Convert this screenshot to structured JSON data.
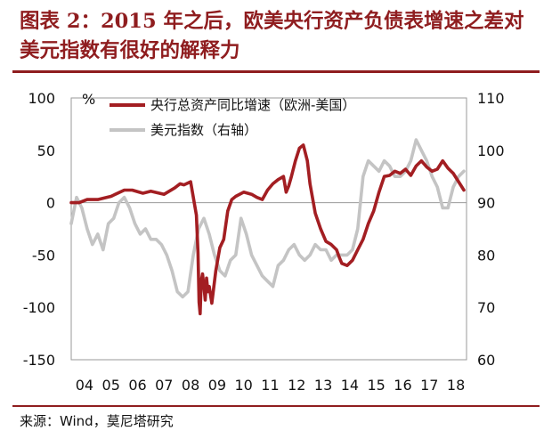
{
  "figure": {
    "title": "图表 2：2015 年之后，欧美央行资产负债表增速之差对美元指数有很好的解释力",
    "source": "来源：Wind，莫尼塔研究"
  },
  "colors": {
    "title": "#8f1d1f",
    "series_balance_sheet": "#a31e22",
    "series_dollar_index": "#c4c4c4"
  },
  "chart_data": {
    "type": "line",
    "left_axis": {
      "unit": "%",
      "range": [
        -150,
        100
      ],
      "ticks": [
        "100",
        "50",
        "0",
        "-50",
        "-100",
        "-150"
      ]
    },
    "right_axis": {
      "range": [
        60,
        110
      ],
      "ticks": [
        "110",
        "100",
        "90",
        "80",
        "70",
        "60"
      ]
    },
    "x_axis": {
      "range": [
        2004.0,
        2018.9
      ],
      "ticks": [
        "04",
        "05",
        "06",
        "07",
        "08",
        "09",
        "10",
        "11",
        "12",
        "13",
        "14",
        "15",
        "16",
        "17",
        "18"
      ]
    },
    "grid": false,
    "legend_position": "top",
    "series": [
      {
        "name": "央行总资产同比增速（欧洲-美国）",
        "axis": "left",
        "x": [
          2004.0,
          2004.3,
          2004.6,
          2005.0,
          2005.5,
          2006.0,
          2006.3,
          2006.7,
          2007.0,
          2007.5,
          2007.9,
          2008.1,
          2008.25,
          2008.5,
          2008.72,
          2008.78,
          2008.82,
          2008.86,
          2008.9,
          2008.95,
          2009.0,
          2009.05,
          2009.1,
          2009.15,
          2009.2,
          2009.3,
          2009.45,
          2009.6,
          2009.75,
          2009.9,
          2010.05,
          2010.2,
          2010.5,
          2010.8,
          2011.0,
          2011.2,
          2011.4,
          2011.6,
          2011.8,
          2012.0,
          2012.1,
          2012.2,
          2012.3,
          2012.45,
          2012.6,
          2012.75,
          2012.9,
          2013.0,
          2013.2,
          2013.4,
          2013.6,
          2013.8,
          2014.0,
          2014.1,
          2014.2,
          2014.4,
          2014.6,
          2014.8,
          2015.0,
          2015.2,
          2015.4,
          2015.6,
          2015.8,
          2016.0,
          2016.2,
          2016.4,
          2016.6,
          2016.8,
          2017.0,
          2017.2,
          2017.4,
          2017.6,
          2017.8,
          2018.0,
          2018.2,
          2018.4,
          2018.6,
          2018.8
        ],
        "y": [
          0,
          0,
          3,
          3,
          6,
          12,
          12,
          9,
          11,
          8,
          14,
          18,
          17,
          20,
          -12,
          -48,
          -95,
          -106,
          -75,
          -68,
          -80,
          -93,
          -72,
          -85,
          -80,
          -96,
          -65,
          -43,
          -35,
          -8,
          3,
          6,
          10,
          8,
          5,
          3,
          12,
          18,
          22,
          25,
          10,
          16,
          25,
          40,
          52,
          55,
          40,
          18,
          -10,
          -25,
          -37,
          -40,
          -45,
          -52,
          -58,
          -60,
          -55,
          -45,
          -35,
          -20,
          -8,
          10,
          25,
          26,
          30,
          28,
          32,
          26,
          35,
          40,
          34,
          30,
          32,
          40,
          33,
          28,
          20,
          12
        ]
      },
      {
        "name": "美元指数（右轴）",
        "axis": "right",
        "x": [
          2004.0,
          2004.2,
          2004.4,
          2004.6,
          2004.8,
          2005.0,
          2005.2,
          2005.4,
          2005.6,
          2005.8,
          2006.0,
          2006.2,
          2006.4,
          2006.6,
          2006.8,
          2007.0,
          2007.2,
          2007.4,
          2007.6,
          2007.8,
          2008.0,
          2008.2,
          2008.4,
          2008.6,
          2008.8,
          2009.0,
          2009.2,
          2009.4,
          2009.6,
          2009.8,
          2010.0,
          2010.2,
          2010.4,
          2010.6,
          2010.8,
          2011.0,
          2011.2,
          2011.4,
          2011.6,
          2011.8,
          2012.0,
          2012.2,
          2012.4,
          2012.6,
          2012.8,
          2013.0,
          2013.2,
          2013.4,
          2013.6,
          2013.8,
          2014.0,
          2014.2,
          2014.4,
          2014.6,
          2014.8,
          2015.0,
          2015.2,
          2015.4,
          2015.6,
          2015.8,
          2016.0,
          2016.2,
          2016.4,
          2016.6,
          2016.8,
          2017.0,
          2017.2,
          2017.4,
          2017.6,
          2017.8,
          2018.0,
          2018.2,
          2018.4,
          2018.6,
          2018.8
        ],
        "y": [
          86,
          91,
          89,
          85,
          82,
          84,
          81,
          86,
          87,
          90,
          91,
          89,
          86,
          84,
          85,
          83,
          83,
          82,
          80,
          77,
          73,
          72,
          73,
          80,
          85,
          87,
          84,
          80,
          77,
          76,
          79,
          80,
          87,
          84,
          80,
          78,
          76,
          75,
          74,
          78,
          79,
          81,
          82,
          80,
          79,
          80,
          82,
          81,
          81,
          79,
          80,
          80,
          80,
          81,
          85,
          95,
          98,
          97,
          96,
          98,
          97,
          95,
          95,
          96,
          98,
          102,
          100,
          98,
          95,
          93,
          89,
          89,
          93,
          95,
          96
        ]
      }
    ]
  }
}
